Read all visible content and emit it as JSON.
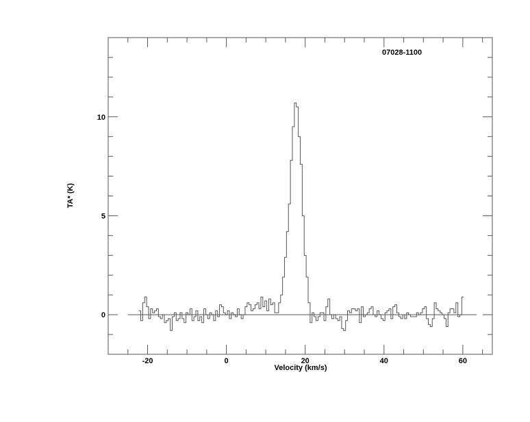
{
  "chart_data": {
    "type": "line",
    "style": "histogram-step",
    "title": "07028-1100",
    "xlabel": "Velocity (km/s)",
    "ylabel": "TA* (K)",
    "xlim": [
      -30,
      67.5
    ],
    "ylim": [
      -2,
      14
    ],
    "x_ticks": [
      -20,
      0,
      20,
      40,
      60
    ],
    "x_tick_labels": [
      "-20",
      "0",
      "20",
      "40",
      "60"
    ],
    "x_minor_step": 5,
    "y_ticks": [
      0,
      5,
      10
    ],
    "y_tick_labels": [
      "0",
      "5",
      "10"
    ],
    "y_minor_step": 1,
    "grid": false,
    "baseline": {
      "y": 0,
      "x_from": -25,
      "x_to": 63.5
    },
    "colors": {
      "line": "#555555",
      "axes": "#555555",
      "text": "#000000"
    },
    "series": [
      {
        "x_start": -22,
        "x_step": 0.5,
        "values": [
          0.2,
          -0.3,
          0.6,
          0.9,
          0.4,
          -0.2,
          0.3,
          0.1,
          0.2,
          0.3,
          -0.1,
          -0.2,
          0.0,
          -0.4,
          -0.3,
          -0.2,
          -0.8,
          -0.1,
          0.1,
          -0.3,
          -0.2,
          0.1,
          -0.2,
          -0.4,
          0.1,
          0.0,
          0.3,
          -0.3,
          -0.1,
          0.2,
          -0.3,
          -0.1,
          -0.4,
          0.3,
          0.0,
          -0.2,
          0.1,
          0.0,
          -0.3,
          0.2,
          -0.1,
          0.5,
          0.4,
          0.1,
          0.0,
          0.2,
          -0.2,
          0.1,
          0.0,
          -0.1,
          0.3,
          0.0,
          -0.2,
          0.0,
          0.4,
          0.6,
          0.5,
          0.2,
          0.3,
          0.5,
          0.6,
          0.3,
          0.9,
          0.4,
          0.7,
          0.2,
          0.8,
          0.5,
          0.6,
          0.1,
          0.1,
          0.6,
          1.0,
          1.9,
          2.9,
          4.2,
          5.6,
          7.8,
          9.5,
          10.7,
          10.5,
          9.0,
          7.6,
          5.0,
          3.0,
          1.9,
          0.6,
          -0.4,
          0.1,
          -0.1,
          -0.3,
          -0.1,
          0.1,
          0.1,
          -0.3,
          0.4,
          0.8,
          0.0,
          -0.2,
          0.0,
          -0.2,
          -0.3,
          -0.1,
          -0.7,
          -0.8,
          -0.3,
          0.2,
          0.1,
          0.3,
          0.3,
          0.2,
          0.3,
          -0.4,
          0.4,
          -0.1,
          0.0,
          0.1,
          0.3,
          0.4,
          0.0,
          -0.1,
          0.2,
          0.0,
          -0.2,
          -0.3,
          0.1,
          0.2,
          0.3,
          -0.2,
          0.4,
          0.5,
          0.1,
          -0.1,
          -0.2,
          0.0,
          -0.2,
          0.1,
          0.0,
          -0.1,
          -0.1,
          -0.1,
          0.1,
          0.0,
          0.1,
          0.3,
          0.4,
          -0.2,
          -0.5,
          -0.6,
          -0.2,
          0.6,
          0.3,
          0.2,
          0.1,
          0.0,
          -0.2,
          -0.6,
          0.1,
          0.3,
          0.3,
          0.1,
          0.6,
          -0.1,
          0.0,
          0.9
        ]
      }
    ]
  }
}
